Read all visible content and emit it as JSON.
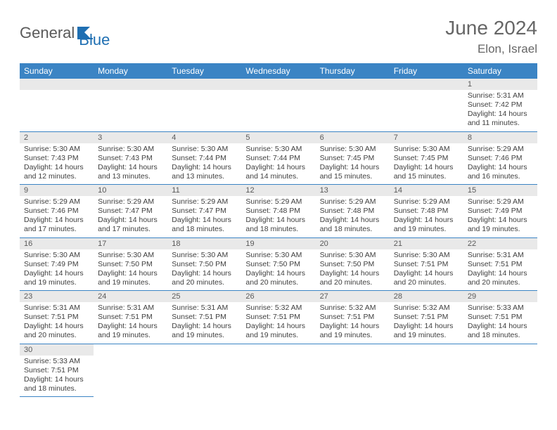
{
  "brand": {
    "part1": "General",
    "part2": "Blue"
  },
  "title": "June 2024",
  "location": "Elon, Israel",
  "colors": {
    "header_bg": "#3b84c4",
    "header_fg": "#ffffff",
    "daynum_bg": "#e9e9e9",
    "text": "#404040",
    "border": "#3b84c4",
    "logo_gray": "#5a5a5a",
    "logo_blue": "#1f6fb2"
  },
  "day_headers": [
    "Sunday",
    "Monday",
    "Tuesday",
    "Wednesday",
    "Thursday",
    "Friday",
    "Saturday"
  ],
  "weeks": [
    [
      null,
      null,
      null,
      null,
      null,
      null,
      {
        "n": "1",
        "sr": "Sunrise: 5:31 AM",
        "ss": "Sunset: 7:42 PM",
        "d1": "Daylight: 14 hours",
        "d2": "and 11 minutes."
      }
    ],
    [
      {
        "n": "2",
        "sr": "Sunrise: 5:30 AM",
        "ss": "Sunset: 7:43 PM",
        "d1": "Daylight: 14 hours",
        "d2": "and 12 minutes."
      },
      {
        "n": "3",
        "sr": "Sunrise: 5:30 AM",
        "ss": "Sunset: 7:43 PM",
        "d1": "Daylight: 14 hours",
        "d2": "and 13 minutes."
      },
      {
        "n": "4",
        "sr": "Sunrise: 5:30 AM",
        "ss": "Sunset: 7:44 PM",
        "d1": "Daylight: 14 hours",
        "d2": "and 13 minutes."
      },
      {
        "n": "5",
        "sr": "Sunrise: 5:30 AM",
        "ss": "Sunset: 7:44 PM",
        "d1": "Daylight: 14 hours",
        "d2": "and 14 minutes."
      },
      {
        "n": "6",
        "sr": "Sunrise: 5:30 AM",
        "ss": "Sunset: 7:45 PM",
        "d1": "Daylight: 14 hours",
        "d2": "and 15 minutes."
      },
      {
        "n": "7",
        "sr": "Sunrise: 5:30 AM",
        "ss": "Sunset: 7:45 PM",
        "d1": "Daylight: 14 hours",
        "d2": "and 15 minutes."
      },
      {
        "n": "8",
        "sr": "Sunrise: 5:29 AM",
        "ss": "Sunset: 7:46 PM",
        "d1": "Daylight: 14 hours",
        "d2": "and 16 minutes."
      }
    ],
    [
      {
        "n": "9",
        "sr": "Sunrise: 5:29 AM",
        "ss": "Sunset: 7:46 PM",
        "d1": "Daylight: 14 hours",
        "d2": "and 17 minutes."
      },
      {
        "n": "10",
        "sr": "Sunrise: 5:29 AM",
        "ss": "Sunset: 7:47 PM",
        "d1": "Daylight: 14 hours",
        "d2": "and 17 minutes."
      },
      {
        "n": "11",
        "sr": "Sunrise: 5:29 AM",
        "ss": "Sunset: 7:47 PM",
        "d1": "Daylight: 14 hours",
        "d2": "and 18 minutes."
      },
      {
        "n": "12",
        "sr": "Sunrise: 5:29 AM",
        "ss": "Sunset: 7:48 PM",
        "d1": "Daylight: 14 hours",
        "d2": "and 18 minutes."
      },
      {
        "n": "13",
        "sr": "Sunrise: 5:29 AM",
        "ss": "Sunset: 7:48 PM",
        "d1": "Daylight: 14 hours",
        "d2": "and 18 minutes."
      },
      {
        "n": "14",
        "sr": "Sunrise: 5:29 AM",
        "ss": "Sunset: 7:48 PM",
        "d1": "Daylight: 14 hours",
        "d2": "and 19 minutes."
      },
      {
        "n": "15",
        "sr": "Sunrise: 5:29 AM",
        "ss": "Sunset: 7:49 PM",
        "d1": "Daylight: 14 hours",
        "d2": "and 19 minutes."
      }
    ],
    [
      {
        "n": "16",
        "sr": "Sunrise: 5:30 AM",
        "ss": "Sunset: 7:49 PM",
        "d1": "Daylight: 14 hours",
        "d2": "and 19 minutes."
      },
      {
        "n": "17",
        "sr": "Sunrise: 5:30 AM",
        "ss": "Sunset: 7:50 PM",
        "d1": "Daylight: 14 hours",
        "d2": "and 19 minutes."
      },
      {
        "n": "18",
        "sr": "Sunrise: 5:30 AM",
        "ss": "Sunset: 7:50 PM",
        "d1": "Daylight: 14 hours",
        "d2": "and 20 minutes."
      },
      {
        "n": "19",
        "sr": "Sunrise: 5:30 AM",
        "ss": "Sunset: 7:50 PM",
        "d1": "Daylight: 14 hours",
        "d2": "and 20 minutes."
      },
      {
        "n": "20",
        "sr": "Sunrise: 5:30 AM",
        "ss": "Sunset: 7:50 PM",
        "d1": "Daylight: 14 hours",
        "d2": "and 20 minutes."
      },
      {
        "n": "21",
        "sr": "Sunrise: 5:30 AM",
        "ss": "Sunset: 7:51 PM",
        "d1": "Daylight: 14 hours",
        "d2": "and 20 minutes."
      },
      {
        "n": "22",
        "sr": "Sunrise: 5:31 AM",
        "ss": "Sunset: 7:51 PM",
        "d1": "Daylight: 14 hours",
        "d2": "and 20 minutes."
      }
    ],
    [
      {
        "n": "23",
        "sr": "Sunrise: 5:31 AM",
        "ss": "Sunset: 7:51 PM",
        "d1": "Daylight: 14 hours",
        "d2": "and 20 minutes."
      },
      {
        "n": "24",
        "sr": "Sunrise: 5:31 AM",
        "ss": "Sunset: 7:51 PM",
        "d1": "Daylight: 14 hours",
        "d2": "and 19 minutes."
      },
      {
        "n": "25",
        "sr": "Sunrise: 5:31 AM",
        "ss": "Sunset: 7:51 PM",
        "d1": "Daylight: 14 hours",
        "d2": "and 19 minutes."
      },
      {
        "n": "26",
        "sr": "Sunrise: 5:32 AM",
        "ss": "Sunset: 7:51 PM",
        "d1": "Daylight: 14 hours",
        "d2": "and 19 minutes."
      },
      {
        "n": "27",
        "sr": "Sunrise: 5:32 AM",
        "ss": "Sunset: 7:51 PM",
        "d1": "Daylight: 14 hours",
        "d2": "and 19 minutes."
      },
      {
        "n": "28",
        "sr": "Sunrise: 5:32 AM",
        "ss": "Sunset: 7:51 PM",
        "d1": "Daylight: 14 hours",
        "d2": "and 19 minutes."
      },
      {
        "n": "29",
        "sr": "Sunrise: 5:33 AM",
        "ss": "Sunset: 7:51 PM",
        "d1": "Daylight: 14 hours",
        "d2": "and 18 minutes."
      }
    ],
    [
      {
        "n": "30",
        "sr": "Sunrise: 5:33 AM",
        "ss": "Sunset: 7:51 PM",
        "d1": "Daylight: 14 hours",
        "d2": "and 18 minutes."
      },
      null,
      null,
      null,
      null,
      null,
      null
    ]
  ]
}
